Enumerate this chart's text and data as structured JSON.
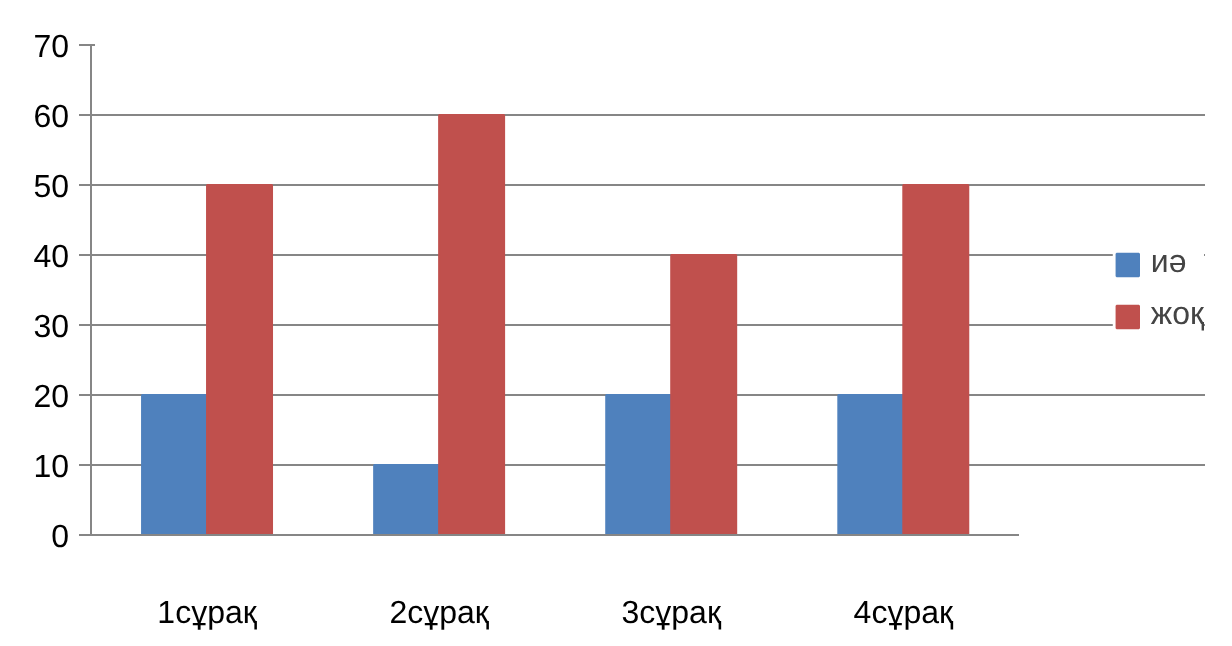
{
  "chart_data": {
    "type": "bar",
    "categories": [
      "1сұрақ",
      "2сұрақ",
      "3сұрақ",
      "4сұрақ"
    ],
    "series": [
      {
        "name": "иә",
        "color": "#4f81bd",
        "values": [
          20,
          10,
          20,
          20
        ]
      },
      {
        "name": "жоқ",
        "color": "#c0504d",
        "values": [
          50,
          60,
          40,
          50
        ]
      }
    ],
    "ylim": [
      0,
      70
    ],
    "yticks": [
      0,
      10,
      20,
      30,
      40,
      50,
      60,
      70
    ],
    "grid": "y",
    "legend": "right"
  }
}
